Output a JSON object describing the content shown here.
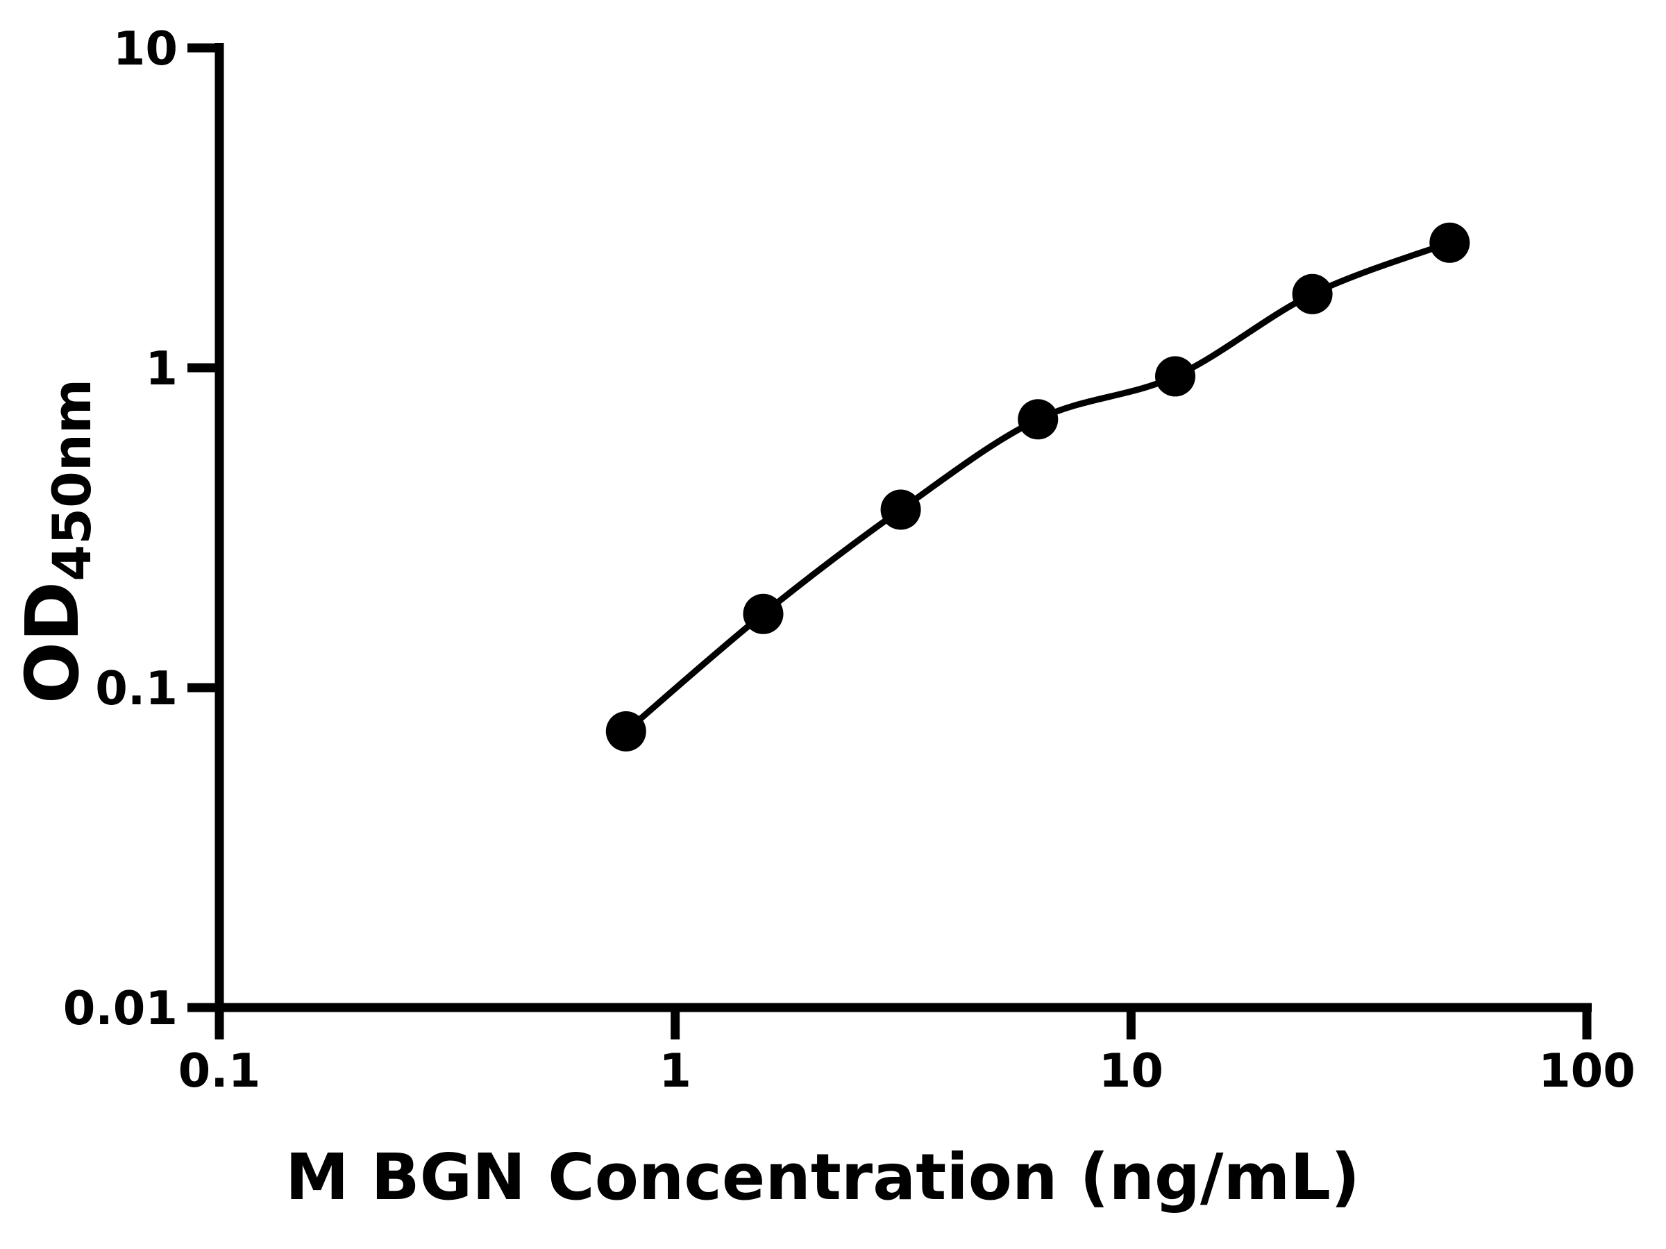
{
  "figure": {
    "background_color": "#ffffff",
    "foreground_color": "#000000"
  },
  "chart_data": {
    "type": "scatter",
    "title": "",
    "xlabel": "M BGN Concentration (ng/mL)",
    "ylabel": {
      "main": "OD",
      "subscript": "450nm"
    },
    "x_scale": "log",
    "y_scale": "log",
    "xlim": [
      0.1,
      100
    ],
    "ylim": [
      0.01,
      10
    ],
    "x_ticks": [
      0.1,
      1,
      10,
      100
    ],
    "x_tick_labels": [
      "0.1",
      "1",
      "10",
      "100"
    ],
    "y_ticks": [
      0.01,
      0.1,
      1,
      10
    ],
    "y_tick_labels": [
      "0.01",
      "0.1",
      "1",
      "10"
    ],
    "grid": false,
    "legend": false,
    "marker_color": "#000000",
    "line_color": "#000000",
    "series": [
      {
        "marker": "circle",
        "line": "smooth",
        "points": [
          {
            "x": 0.78,
            "y": 0.073
          },
          {
            "x": 1.56,
            "y": 0.17
          },
          {
            "x": 3.125,
            "y": 0.36
          },
          {
            "x": 6.25,
            "y": 0.69
          },
          {
            "x": 12.5,
            "y": 0.94
          },
          {
            "x": 25,
            "y": 1.7
          },
          {
            "x": 50,
            "y": 2.46
          }
        ]
      }
    ]
  }
}
